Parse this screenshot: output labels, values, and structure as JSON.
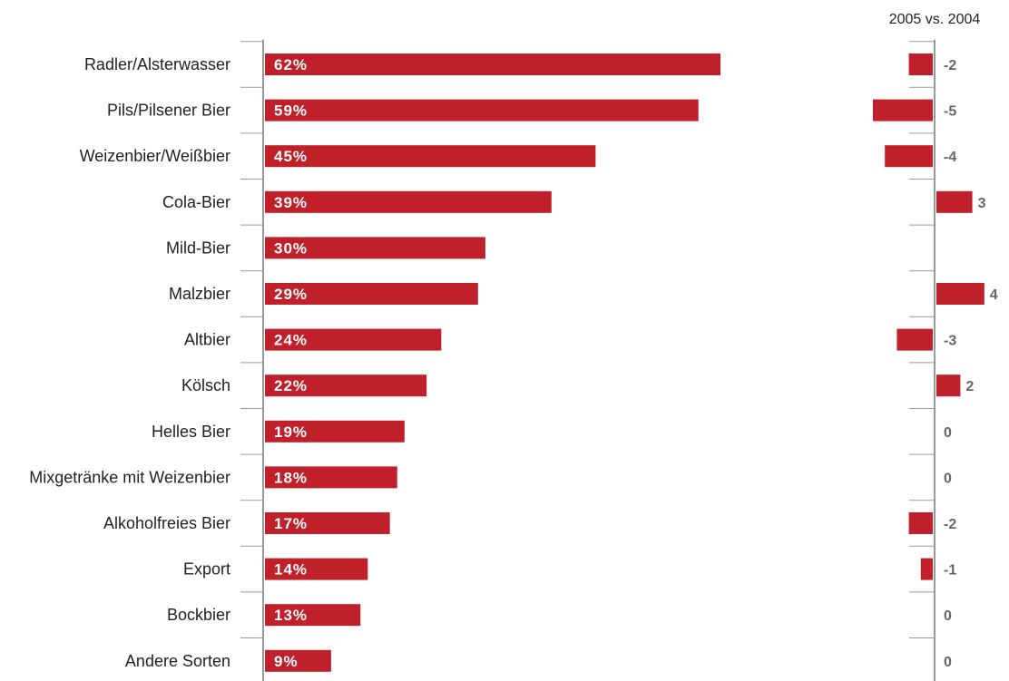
{
  "chart_data": [
    {
      "type": "bar",
      "orientation": "horizontal",
      "categories": [
        "Radler/Alsterwasser",
        "Pils/Pilsener Bier",
        "Weizenbier/Weißbier",
        "Cola-Bier",
        "Mild-Bier",
        "Malzbier",
        "Altbier",
        "Kölsch",
        "Helles Bier",
        "Mixgetränke mit Weizenbier",
        "Alkoholfreies Bier",
        "Export",
        "Bockbier",
        "Andere Sorten"
      ],
      "values": [
        62,
        59,
        45,
        39,
        30,
        29,
        24,
        22,
        19,
        18,
        17,
        14,
        13,
        9
      ],
      "value_labels": [
        "62%",
        "59%",
        "45%",
        "39%",
        "30%",
        "29%",
        "24%",
        "22%",
        "19%",
        "18%",
        "17%",
        "14%",
        "13%",
        "9%"
      ],
      "xlim": [
        0,
        100
      ],
      "title": "",
      "xlabel": "",
      "ylabel": "",
      "grid": false,
      "bar_color": "#c0202a"
    },
    {
      "type": "bar",
      "orientation": "horizontal",
      "header": "2005 vs. 2004",
      "categories": [
        "Radler/Alsterwasser",
        "Pils/Pilsener Bier",
        "Weizenbier/Weißbier",
        "Cola-Bier",
        "Mild-Bier",
        "Malzbier",
        "Altbier",
        "Kölsch",
        "Helles Bier",
        "Mixgetränke mit Weizenbier",
        "Alkoholfreies Bier",
        "Export",
        "Bockbier",
        "Andere Sorten"
      ],
      "values": [
        -2,
        -5,
        -4,
        3,
        null,
        4,
        -3,
        2,
        0,
        0,
        -2,
        -1,
        0,
        0
      ],
      "value_labels": [
        "-2",
        "-5",
        "-4",
        "3",
        "",
        "4",
        "-3",
        "2",
        "0",
        "0",
        "-2",
        "-1",
        "0",
        "0"
      ],
      "xlim": [
        -6,
        6
      ],
      "grid": false,
      "bar_color": "#c0202a"
    }
  ],
  "colors": {
    "bar": "#c0202a",
    "axis": "#999999",
    "delta_text": "#666666"
  }
}
